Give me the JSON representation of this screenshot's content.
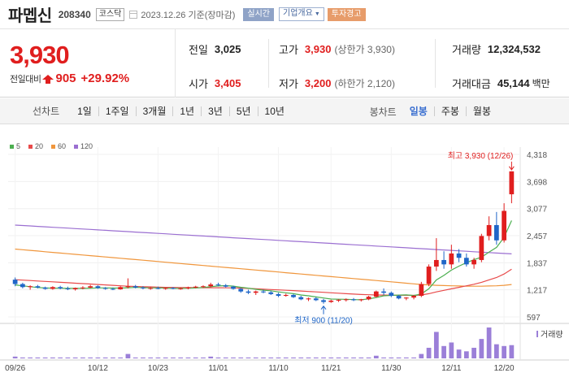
{
  "header": {
    "stock_name": "파멥신",
    "stock_code": "208340",
    "market": "코스닥",
    "date_text": "2023.12.26 기준(장마감)",
    "realtime_label": "실시간",
    "overview_label": "기업개요",
    "warning_label": "투자경고"
  },
  "quote": {
    "price": "3,930",
    "change_label": "전일대비",
    "change_value": "905",
    "change_pct": "+29.92%",
    "prev_close_label": "전일",
    "prev_close": "3,025",
    "high_label": "고가",
    "high": "3,930",
    "high_limit": "(상한가 3,930)",
    "volume_label": "거래량",
    "volume": "12,324,532",
    "open_label": "시가",
    "open": "3,405",
    "low_label": "저가",
    "low": "3,200",
    "low_limit": "(하한가 2,120)",
    "amount_label": "거래대금",
    "amount": "45,144",
    "amount_unit": "백만"
  },
  "toolbar": {
    "line_label": "선차트",
    "line_items": [
      "1일",
      "1주일",
      "3개월",
      "1년",
      "3년",
      "5년",
      "10년"
    ],
    "candle_label": "봉차트",
    "candle_items": [
      "일봉",
      "주봉",
      "월봉"
    ],
    "candle_active": "일봉"
  },
  "colors": {
    "up": "#e01e1e",
    "down": "#1f66c8",
    "ma5": "#4caf50",
    "ma20": "#e84a4a",
    "ma60": "#f0963c",
    "ma120": "#9b6fd1"
  },
  "chart_data": {
    "type": "candlestick",
    "title": "",
    "legend": [
      "5",
      "20",
      "60",
      "120"
    ],
    "y_ticks": [
      "4,318",
      "3,698",
      "3,077",
      "2,457",
      "1,837",
      "1,217",
      "597"
    ],
    "ylim": [
      597,
      4318
    ],
    "x_ticks": [
      "09/26",
      "10/12",
      "10/23",
      "11/01",
      "11/10",
      "11/21",
      "11/30",
      "12/11",
      "12/20"
    ],
    "annotation_high": "최고 3,930 (12/26)",
    "annotation_low": "최저 900 (11/20)",
    "volume_label": "거래량",
    "candles": [
      [
        1450,
        1500,
        1300,
        1350
      ],
      [
        1350,
        1380,
        1250,
        1280
      ],
      [
        1280,
        1320,
        1220,
        1300
      ],
      [
        1300,
        1330,
        1250,
        1270
      ],
      [
        1270,
        1290,
        1220,
        1240
      ],
      [
        1240,
        1300,
        1220,
        1280
      ],
      [
        1280,
        1310,
        1230,
        1250
      ],
      [
        1250,
        1290,
        1210,
        1230
      ],
      [
        1230,
        1270,
        1200,
        1260
      ],
      [
        1260,
        1300,
        1230,
        1270
      ],
      [
        1270,
        1330,
        1250,
        1300
      ],
      [
        1300,
        1320,
        1240,
        1260
      ],
      [
        1260,
        1280,
        1220,
        1240
      ],
      [
        1240,
        1270,
        1210,
        1230
      ],
      [
        1230,
        1300,
        1220,
        1280
      ],
      [
        1280,
        1480,
        1250,
        1300
      ],
      [
        1300,
        1330,
        1250,
        1270
      ],
      [
        1270,
        1300,
        1230,
        1250
      ],
      [
        1250,
        1280,
        1220,
        1260
      ],
      [
        1260,
        1290,
        1230,
        1240
      ],
      [
        1240,
        1270,
        1220,
        1260
      ],
      [
        1260,
        1280,
        1230,
        1240
      ],
      [
        1240,
        1270,
        1220,
        1250
      ],
      [
        1250,
        1290,
        1230,
        1270
      ],
      [
        1270,
        1310,
        1250,
        1290
      ],
      [
        1290,
        1320,
        1260,
        1300
      ],
      [
        1300,
        1380,
        1280,
        1340
      ],
      [
        1340,
        1380,
        1300,
        1320
      ],
      [
        1320,
        1350,
        1270,
        1290
      ],
      [
        1290,
        1310,
        1220,
        1240
      ],
      [
        1240,
        1260,
        1150,
        1180
      ],
      [
        1180,
        1220,
        1120,
        1150
      ],
      [
        1150,
        1200,
        1100,
        1180
      ],
      [
        1180,
        1220,
        1140,
        1160
      ],
      [
        1160,
        1190,
        1100,
        1120
      ],
      [
        1120,
        1150,
        1050,
        1080
      ],
      [
        1080,
        1130,
        1060,
        1100
      ],
      [
        1100,
        1120,
        1030,
        1050
      ],
      [
        1050,
        1080,
        980,
        1000
      ],
      [
        1000,
        1040,
        960,
        1020
      ],
      [
        1020,
        1050,
        960,
        980
      ],
      [
        980,
        1010,
        900,
        940
      ],
      [
        940,
        990,
        920,
        970
      ],
      [
        970,
        1000,
        940,
        990
      ],
      [
        990,
        1020,
        950,
        1000
      ],
      [
        1000,
        1030,
        960,
        980
      ],
      [
        980,
        1010,
        950,
        1000
      ],
      [
        1000,
        1080,
        980,
        1060
      ],
      [
        1060,
        1200,
        1040,
        1180
      ],
      [
        1180,
        1250,
        1100,
        1150
      ],
      [
        1150,
        1180,
        1050,
        1080
      ],
      [
        1080,
        1100,
        1000,
        1020
      ],
      [
        1020,
        1050,
        980,
        1040
      ],
      [
        1040,
        1100,
        1000,
        1080
      ],
      [
        1080,
        1400,
        1050,
        1350
      ],
      [
        1350,
        1800,
        1300,
        1750
      ],
      [
        1750,
        2400,
        1650,
        1900
      ],
      [
        1900,
        2100,
        1700,
        1800
      ],
      [
        1800,
        2250,
        1700,
        2050
      ],
      [
        2050,
        2150,
        1850,
        1950
      ],
      [
        1950,
        2050,
        1750,
        1800
      ],
      [
        1800,
        1950,
        1700,
        1900
      ],
      [
        1900,
        2500,
        1850,
        2450
      ],
      [
        2450,
        2900,
        2350,
        2700
      ],
      [
        2700,
        3000,
        2250,
        2350
      ],
      [
        2350,
        3200,
        2300,
        3025
      ],
      [
        3405,
        3930,
        3200,
        3930
      ]
    ],
    "ma5": [
      1330,
      1310,
      1290,
      1270,
      1260,
      1255,
      1255,
      1250,
      1250,
      1250,
      1255,
      1262,
      1262,
      1258,
      1258,
      1264,
      1272,
      1266,
      1262,
      1262,
      1258,
      1250,
      1250,
      1254,
      1260,
      1270,
      1290,
      1306,
      1314,
      1302,
      1276,
      1256,
      1230,
      1210,
      1196,
      1170,
      1150,
      1130,
      1100,
      1080,
      1054,
      1030,
      1006,
      1002,
      1000,
      994,
      990,
      1010,
      1042,
      1080,
      1090,
      1098,
      1102,
      1088,
      1122,
      1242,
      1444,
      1548,
      1668,
      1760,
      1840,
      1906,
      1964,
      2082,
      2190,
      2418,
      2804
    ],
    "ma20": [
      1450,
      1440,
      1430,
      1420,
      1410,
      1400,
      1390,
      1380,
      1370,
      1360,
      1350,
      1340,
      1330,
      1320,
      1310,
      1300,
      1295,
      1290,
      1285,
      1280,
      1275,
      1272,
      1270,
      1268,
      1266,
      1265,
      1264,
      1264,
      1263,
      1262,
      1258,
      1250,
      1240,
      1232,
      1224,
      1216,
      1208,
      1200,
      1190,
      1180,
      1170,
      1160,
      1150,
      1140,
      1130,
      1120,
      1110,
      1105,
      1100,
      1098,
      1096,
      1094,
      1092,
      1090,
      1100,
      1130,
      1170,
      1205,
      1240,
      1275,
      1310,
      1345,
      1390,
      1445,
      1500,
      1580,
      1690
    ],
    "ma60": [
      2150,
      2135,
      2120,
      2105,
      2090,
      2075,
      2060,
      2045,
      2030,
      2015,
      2000,
      1985,
      1970,
      1955,
      1940,
      1925,
      1910,
      1895,
      1880,
      1865,
      1850,
      1835,
      1820,
      1805,
      1790,
      1775,
      1760,
      1745,
      1730,
      1715,
      1700,
      1685,
      1670,
      1655,
      1640,
      1625,
      1610,
      1595,
      1580,
      1565,
      1550,
      1535,
      1520,
      1505,
      1490,
      1475,
      1460,
      1445,
      1430,
      1415,
      1400,
      1385,
      1370,
      1355,
      1340,
      1330,
      1320,
      1315,
      1310,
      1305,
      1300,
      1300,
      1300,
      1305,
      1310,
      1320,
      1340
    ],
    "ma120": [
      2700,
      2690,
      2680,
      2670,
      2660,
      2650,
      2640,
      2630,
      2620,
      2610,
      2600,
      2590,
      2580,
      2570,
      2560,
      2550,
      2540,
      2530,
      2520,
      2510,
      2500,
      2490,
      2480,
      2470,
      2460,
      2450,
      2440,
      2430,
      2420,
      2410,
      2400,
      2390,
      2380,
      2370,
      2360,
      2350,
      2340,
      2330,
      2320,
      2310,
      2300,
      2290,
      2280,
      2270,
      2260,
      2250,
      2240,
      2230,
      2220,
      2210,
      2200,
      2190,
      2180,
      2170,
      2160,
      2150,
      2140,
      2130,
      2120,
      2110,
      2100,
      2090,
      2080,
      2070,
      2060,
      2050,
      2040
    ],
    "volume": [
      2,
      1,
      1,
      1,
      1,
      1,
      1,
      1,
      1,
      1,
      1,
      1,
      1,
      1,
      1,
      5,
      1,
      1,
      1,
      1,
      1,
      1,
      1,
      1,
      1,
      1,
      2,
      1,
      1,
      1,
      1,
      1,
      1,
      1,
      1,
      1,
      1,
      1,
      1,
      1,
      1,
      1,
      1,
      1,
      1,
      1,
      1,
      1,
      3,
      1,
      1,
      1,
      1,
      1,
      5,
      12,
      30,
      14,
      18,
      10,
      8,
      12,
      22,
      35,
      16,
      14,
      15
    ]
  }
}
